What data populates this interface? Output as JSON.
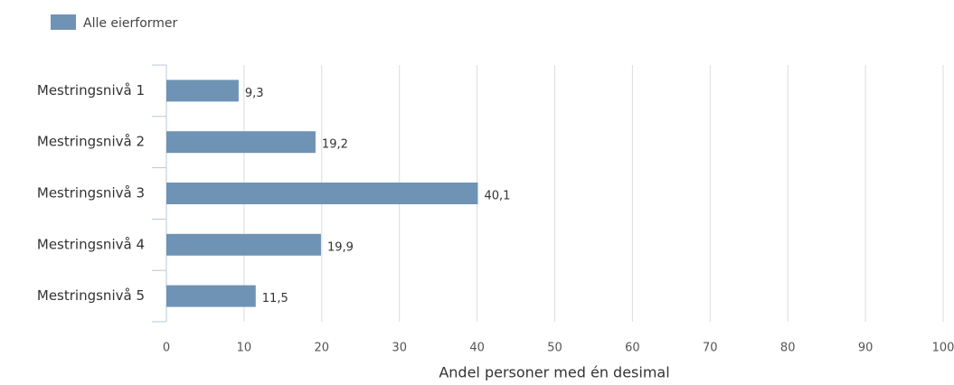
{
  "chart_data": {
    "type": "bar",
    "orientation": "horizontal",
    "categories": [
      "Mestringsnivå 1",
      "Mestringsnivå 2",
      "Mestringsnivå 3",
      "Mestringsnivå 4",
      "Mestringsnivå 5"
    ],
    "series": [
      {
        "name": "Alle eierformer",
        "color": "#6e93b5",
        "values": [
          9.3,
          19.2,
          40.1,
          19.9,
          11.5
        ],
        "value_labels": [
          "9,3",
          "19,2",
          "40,1",
          "19,9",
          "11,5"
        ]
      }
    ],
    "xlabel": "Andel personer med én desimal",
    "xlim": [
      0,
      100
    ],
    "xticks": [
      0,
      10,
      20,
      30,
      40,
      50,
      60,
      70,
      80,
      90,
      100
    ],
    "grid": true,
    "legend": "top-left"
  }
}
